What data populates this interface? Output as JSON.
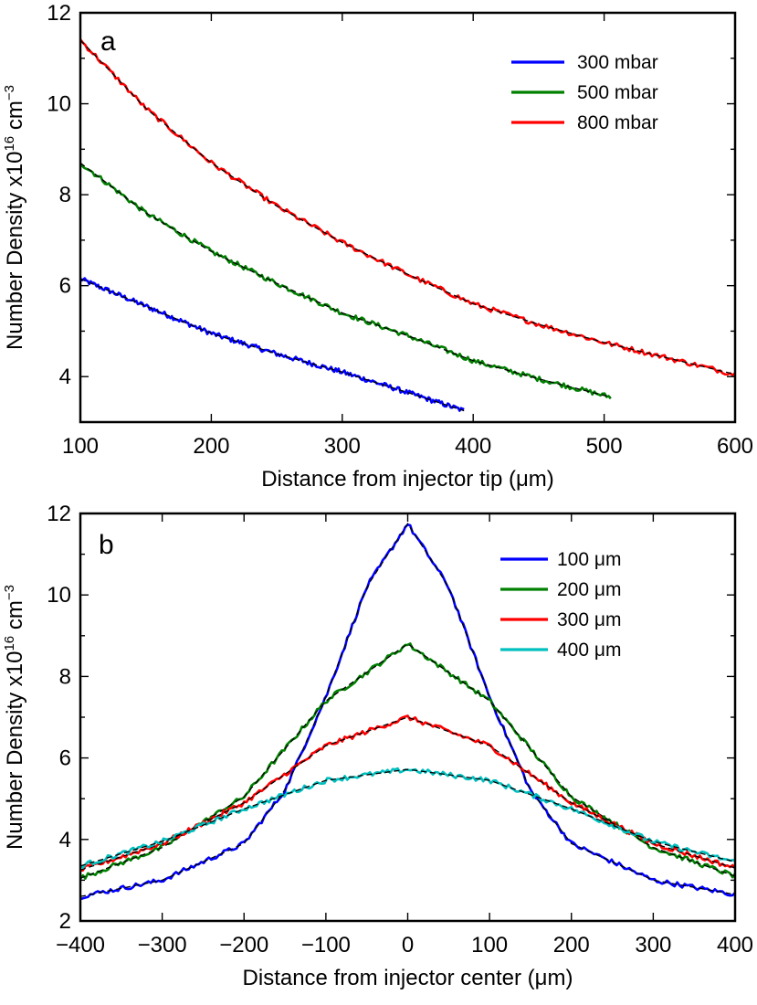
{
  "chart_data": [
    {
      "panel": "a",
      "type": "line",
      "xlabel": "Distance from injector tip (μm)",
      "ylabel": "Number Density x10^16 cm^-3",
      "ylabel_parts": {
        "base": "Number Density x10",
        "exp1": "16",
        "unit": "cm",
        "exp2": "−3"
      },
      "xlim": [
        100,
        600
      ],
      "ylim": [
        3,
        12
      ],
      "xticks": [
        100,
        200,
        300,
        400,
        500,
        600
      ],
      "yticks": [
        4,
        6,
        8,
        10,
        12
      ],
      "legend_position": "top-right",
      "fit_style": "black dashed",
      "series": [
        {
          "name": "300 mbar",
          "color": "#0000ff",
          "x": [
            100,
            150,
            200,
            250,
            300,
            350,
            393
          ],
          "y": [
            6.15,
            5.55,
            4.95,
            4.5,
            4.1,
            3.65,
            3.25
          ]
        },
        {
          "name": "500 mbar",
          "color": "#008000",
          "x": [
            100,
            150,
            200,
            250,
            300,
            350,
            400,
            450,
            505
          ],
          "y": [
            8.7,
            7.6,
            6.75,
            6.05,
            5.4,
            4.9,
            4.35,
            3.95,
            3.55
          ]
        },
        {
          "name": "800 mbar",
          "color": "#ff0000",
          "x": [
            100,
            150,
            200,
            250,
            300,
            350,
            400,
            450,
            500,
            550,
            600
          ],
          "y": [
            11.4,
            9.9,
            8.7,
            7.75,
            6.95,
            6.25,
            5.6,
            5.15,
            4.75,
            4.4,
            4.05
          ]
        }
      ]
    },
    {
      "panel": "b",
      "type": "line",
      "xlabel": "Distance from injector center (μm)",
      "ylabel": "Number Density x10^16 cm^-3",
      "ylabel_parts": {
        "base": "Number Density x10",
        "exp1": "16",
        "unit": "cm",
        "exp2": "−3"
      },
      "xlim": [
        -400,
        400
      ],
      "ylim": [
        2,
        12
      ],
      "xticks": [
        -400,
        -300,
        -200,
        -100,
        0,
        100,
        200,
        300,
        400
      ],
      "yticks": [
        2,
        4,
        6,
        8,
        10,
        12
      ],
      "legend_position": "top-right",
      "fit_style": "black dashed",
      "series": [
        {
          "name": "100 μm",
          "color": "#0000ff",
          "x": [
            -400,
            -300,
            -200,
            -150,
            -100,
            -50,
            0,
            50,
            100,
            150,
            200,
            300,
            400
          ],
          "y": [
            2.6,
            3.0,
            3.9,
            5.2,
            7.5,
            10.2,
            11.75,
            10.2,
            7.5,
            5.2,
            3.9,
            3.0,
            2.65
          ]
        },
        {
          "name": "200 μm",
          "color": "#008000",
          "x": [
            -400,
            -300,
            -200,
            -100,
            0,
            100,
            200,
            300,
            400
          ],
          "y": [
            3.05,
            3.8,
            5.05,
            7.4,
            8.8,
            7.4,
            5.05,
            3.8,
            3.1
          ]
        },
        {
          "name": "300 μm",
          "color": "#ff0000",
          "x": [
            -400,
            -300,
            -200,
            -100,
            0,
            100,
            200,
            300,
            400
          ],
          "y": [
            3.25,
            3.9,
            4.9,
            6.3,
            7.0,
            6.3,
            4.9,
            3.9,
            3.3
          ]
        },
        {
          "name": "400 μm",
          "color": "#00bfbf",
          "x": [
            -400,
            -300,
            -200,
            -100,
            0,
            100,
            200,
            300,
            400
          ],
          "y": [
            3.35,
            3.95,
            4.75,
            5.45,
            5.72,
            5.45,
            4.75,
            3.95,
            3.45
          ]
        }
      ]
    }
  ]
}
